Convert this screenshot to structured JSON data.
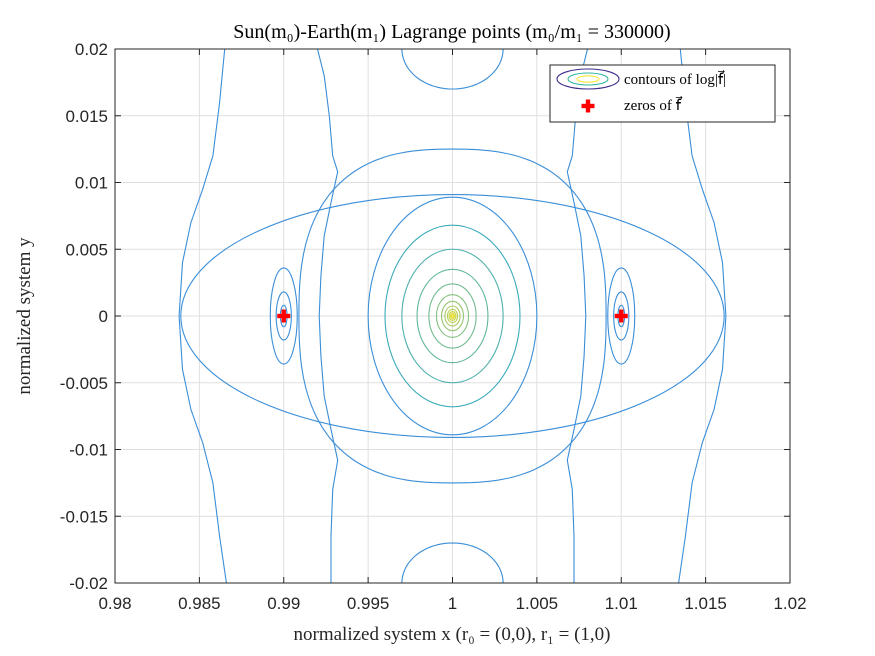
{
  "chart_data": {
    "type": "contour",
    "title": "Sun(m₀)-Earth(m₁) Lagrange points (m₀/m₁ = 330000)",
    "xlabel": "normalized system x (r₀ = (0,0), r₁ = (1,0)",
    "ylabel": "normalized system y",
    "xlim": [
      0.98,
      1.02
    ],
    "ylim": [
      -0.02,
      0.02
    ],
    "xticks": [
      0.98,
      0.985,
      0.99,
      0.995,
      1,
      1.005,
      1.01,
      1.015,
      1.02
    ],
    "xtick_labels": [
      "0.98",
      "0.985",
      "0.99",
      "0.995",
      "1",
      "1.005",
      "1.01",
      "1.015",
      "1.02"
    ],
    "yticks": [
      0.02,
      0.015,
      0.01,
      0.005,
      0,
      -0.005,
      -0.01,
      -0.015,
      -0.02
    ],
    "ytick_labels": [
      "0.02",
      "0.015",
      "0.01",
      "0.005",
      "0",
      "-0.005",
      "-0.01",
      "-0.015",
      "-0.02"
    ],
    "grid": true,
    "legend_position": "top-right",
    "legend": [
      {
        "label": "contours of log|f⃗|",
        "marker": "contour-ellipses"
      },
      {
        "label": "zeros of f⃗",
        "marker": "red-plus"
      }
    ],
    "zeros": [
      {
        "x": 0.99,
        "y": 0
      },
      {
        "x": 1.01,
        "y": 0
      }
    ],
    "center": {
      "x": 1.0,
      "y": 0
    },
    "colors": {
      "outer_contour": "#3a8ed8",
      "inner_contour_start": "#2aa5c8",
      "inner_contour_end": "#f0e22a",
      "zero_marker": "#ff0000",
      "legend_outer": "#3f2c8c",
      "legend_mid": "#2fb5a0",
      "legend_inner": "#f2e63a"
    }
  }
}
